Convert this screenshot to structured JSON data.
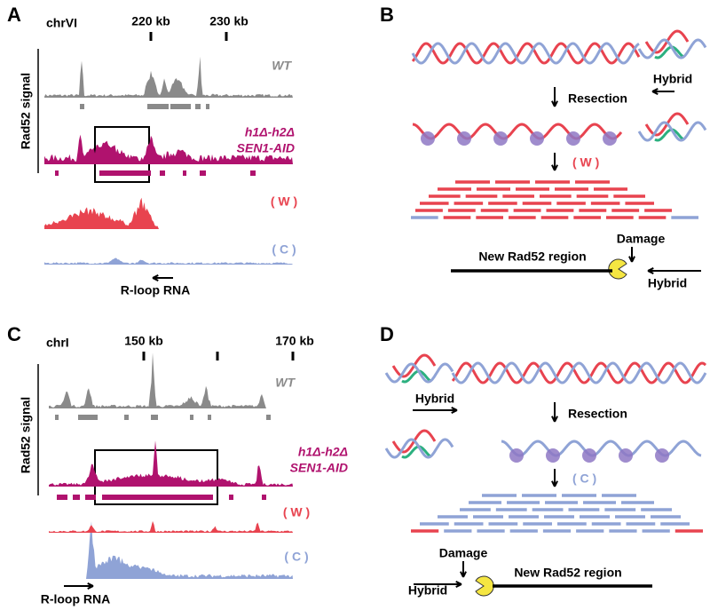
{
  "panel_a": {
    "label": "A",
    "chromosome": "chrVI",
    "positions": [
      "220 kb",
      "230 kb"
    ],
    "axis_label": "Rad52 signal",
    "wt": "WT",
    "mutant": [
      "h1Δ-h2Δ",
      "SEN1-AID"
    ],
    "watson": "( W )",
    "crick": "( C )",
    "rna": "R-loop RNA"
  },
  "panel_b": {
    "label": "B",
    "hybrid_top": "Hybrid",
    "step": "Resection",
    "strand": "( W )",
    "damage": "Damage",
    "new_region": "New Rad52 region",
    "hybrid_bottom": "Hybrid"
  },
  "panel_c": {
    "label": "C",
    "chromosome": "chrI",
    "positions": [
      "150 kb",
      "170 kb"
    ],
    "axis_label": "Rad52 signal",
    "wt": "WT",
    "mutant": [
      "h1Δ-h2Δ",
      "SEN1-AID"
    ],
    "watson": "( W )",
    "crick": "( C )",
    "rna": "R-loop RNA"
  },
  "panel_d": {
    "label": "D",
    "hybrid_top": "Hybrid",
    "step": "Resection",
    "strand": "( C )",
    "damage": "Damage",
    "hybrid_bottom": "Hybrid",
    "new_region": "New Rad52 region"
  }
}
